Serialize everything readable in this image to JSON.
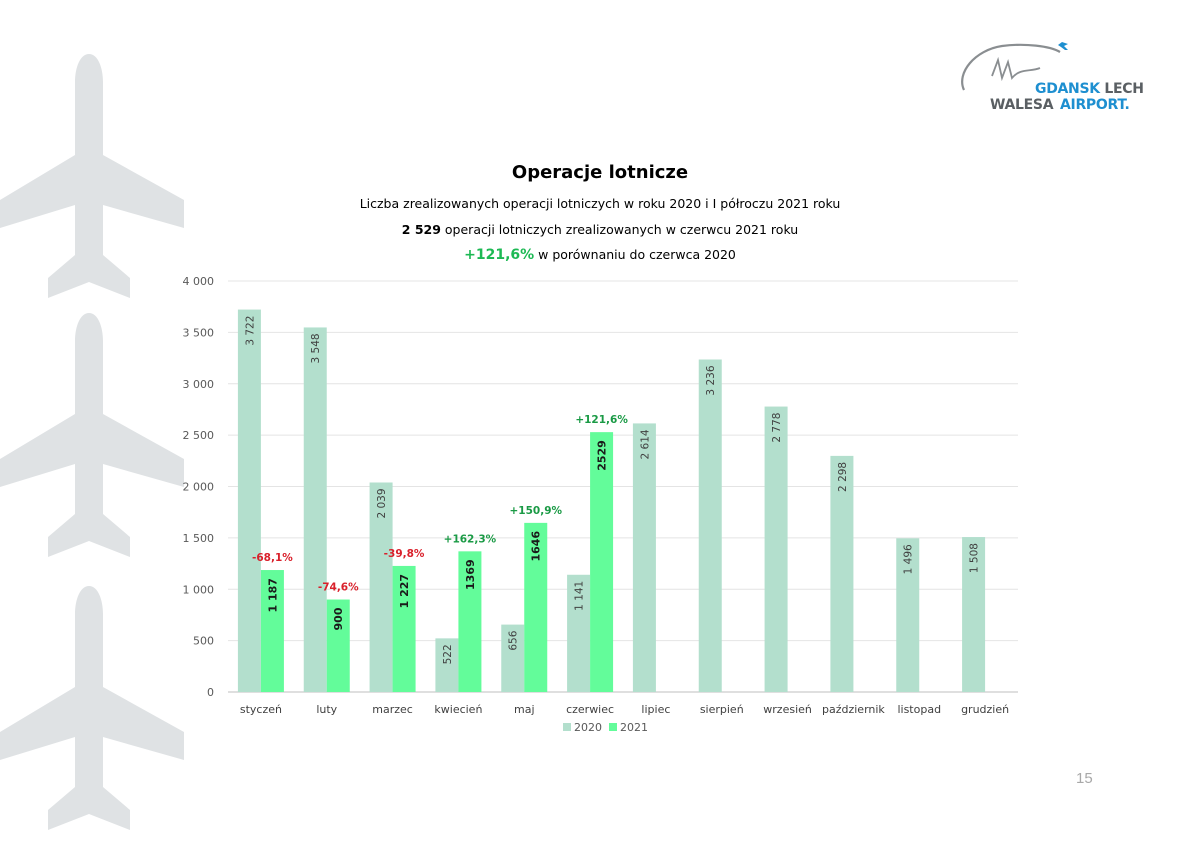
{
  "header": {
    "title": "Operacje lotnicze",
    "subtitle": "Liczba zrealizowanych operacji lotniczych w roku 2020 i I półroczu 2021 roku",
    "june_value": "2 529",
    "june_text": "operacji lotniczych zrealizowanych w czerwcu 2021 roku",
    "june_change": "+121,6%",
    "june_change_text": "w porównaniu do czerwca 2020"
  },
  "logo": {
    "line1_part1": "GDANSK",
    "line1_part2": "LECH",
    "line2_part1": "WALESA",
    "line2_part2": "AIRPORT."
  },
  "page_number": "15",
  "colors": {
    "series_2020": "#b3dfcd",
    "series_2021": "#63fc9a",
    "negative": "#d9202b",
    "positive": "#1a9a45",
    "background_plane": "#dfe2e4",
    "brand_blue": "#1e8fd0",
    "brand_gray": "#5a5f63"
  },
  "chart_data": {
    "type": "bar",
    "categories": [
      "styczeń",
      "luty",
      "marzec",
      "kwiecień",
      "maj",
      "czerwiec",
      "lipiec",
      "sierpień",
      "wrzesień",
      "październik",
      "listopad",
      "grudzień"
    ],
    "series": [
      {
        "name": "2020",
        "values": [
          3722,
          3548,
          2039,
          522,
          656,
          1141,
          2614,
          3236,
          2778,
          2298,
          1496,
          1508
        ],
        "labels": [
          "3 722",
          "3 548",
          "2 039",
          "522",
          "656",
          "1 141",
          "2 614",
          "3 236",
          "2 778",
          "2 298",
          "1 496",
          "1 508"
        ]
      },
      {
        "name": "2021",
        "values": [
          1187,
          900,
          1227,
          1369,
          1646,
          2529,
          null,
          null,
          null,
          null,
          null,
          null
        ],
        "labels": [
          "1 187",
          "900",
          "1 227",
          "1369",
          "1646",
          "2529",
          null,
          null,
          null,
          null,
          null,
          null
        ]
      }
    ],
    "annotations": [
      "-68,1%",
      "-74,6%",
      "-39,8%",
      "+162,3%",
      "+150,9%",
      "+121,6%",
      null,
      null,
      null,
      null,
      null,
      null
    ],
    "yticks": [
      "0",
      "500",
      "1 000",
      "1 500",
      "2 000",
      "2 500",
      "3 000",
      "3 500",
      "4 000"
    ],
    "ylim": [
      0,
      4000
    ],
    "grid": true,
    "legend_position": "bottom"
  }
}
